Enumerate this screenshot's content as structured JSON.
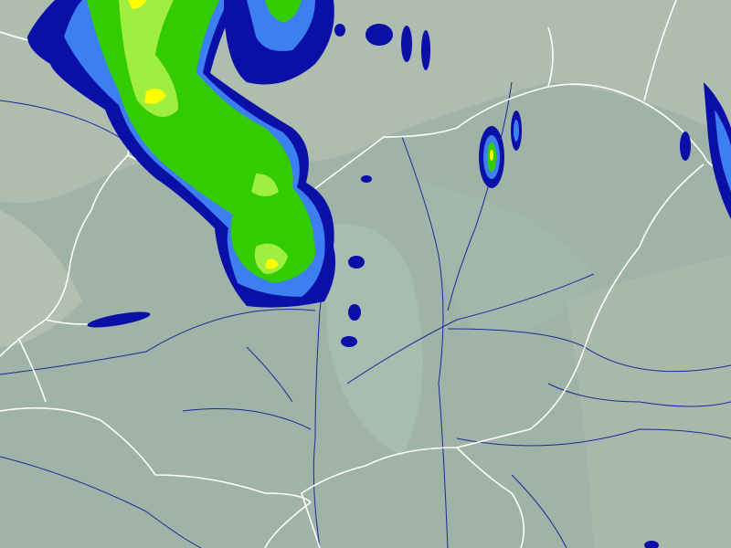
{
  "map": {
    "type": "precipitation radar overlay",
    "colors": {
      "background": "#9fb3a6",
      "lowland": "#a9bdb0",
      "highland": "#b7c3b6",
      "border": "#ffffff",
      "river": "#1a2a9a",
      "precip_level_1": "#0a0fa8",
      "precip_level_2": "#3c7ff0",
      "precip_level_3": "#33cc00",
      "precip_level_4": "#a0ee40",
      "precip_level_5": "#ffff00"
    }
  }
}
